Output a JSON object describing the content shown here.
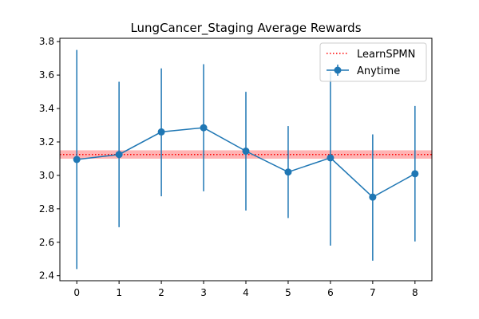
{
  "chart_data": {
    "type": "line",
    "title": "LungCancer_Staging Average Rewards",
    "xlabel": "",
    "ylabel": "",
    "xlim": [
      -0.4,
      8.4
    ],
    "ylim": [
      2.37,
      3.82
    ],
    "x_ticks": [
      0,
      1,
      2,
      3,
      4,
      5,
      6,
      7,
      8
    ],
    "y_ticks": [
      2.4,
      2.6,
      2.8,
      3.0,
      3.2,
      3.4,
      3.6,
      3.8
    ],
    "grid": false,
    "legend_position": "upper right",
    "series": [
      {
        "name": "LearnSPMN",
        "kind": "reference-line",
        "value": 3.125,
        "band_low": 3.1,
        "band_high": 3.15,
        "line_color": "#ff0000",
        "band_color": "#ff8080",
        "style": "dotted"
      },
      {
        "name": "Anytime",
        "kind": "errorbar-line",
        "color": "#1f77b4",
        "x": [
          0,
          1,
          2,
          3,
          4,
          5,
          6,
          7,
          8
        ],
        "y": [
          3.095,
          3.125,
          3.26,
          3.285,
          3.145,
          3.02,
          3.105,
          2.87,
          3.01
        ],
        "y_low": [
          2.44,
          2.69,
          2.875,
          2.905,
          2.79,
          2.745,
          2.58,
          2.49,
          2.605
        ],
        "y_high": [
          3.75,
          3.56,
          3.64,
          3.665,
          3.5,
          3.295,
          3.62,
          3.245,
          3.415
        ]
      }
    ]
  }
}
